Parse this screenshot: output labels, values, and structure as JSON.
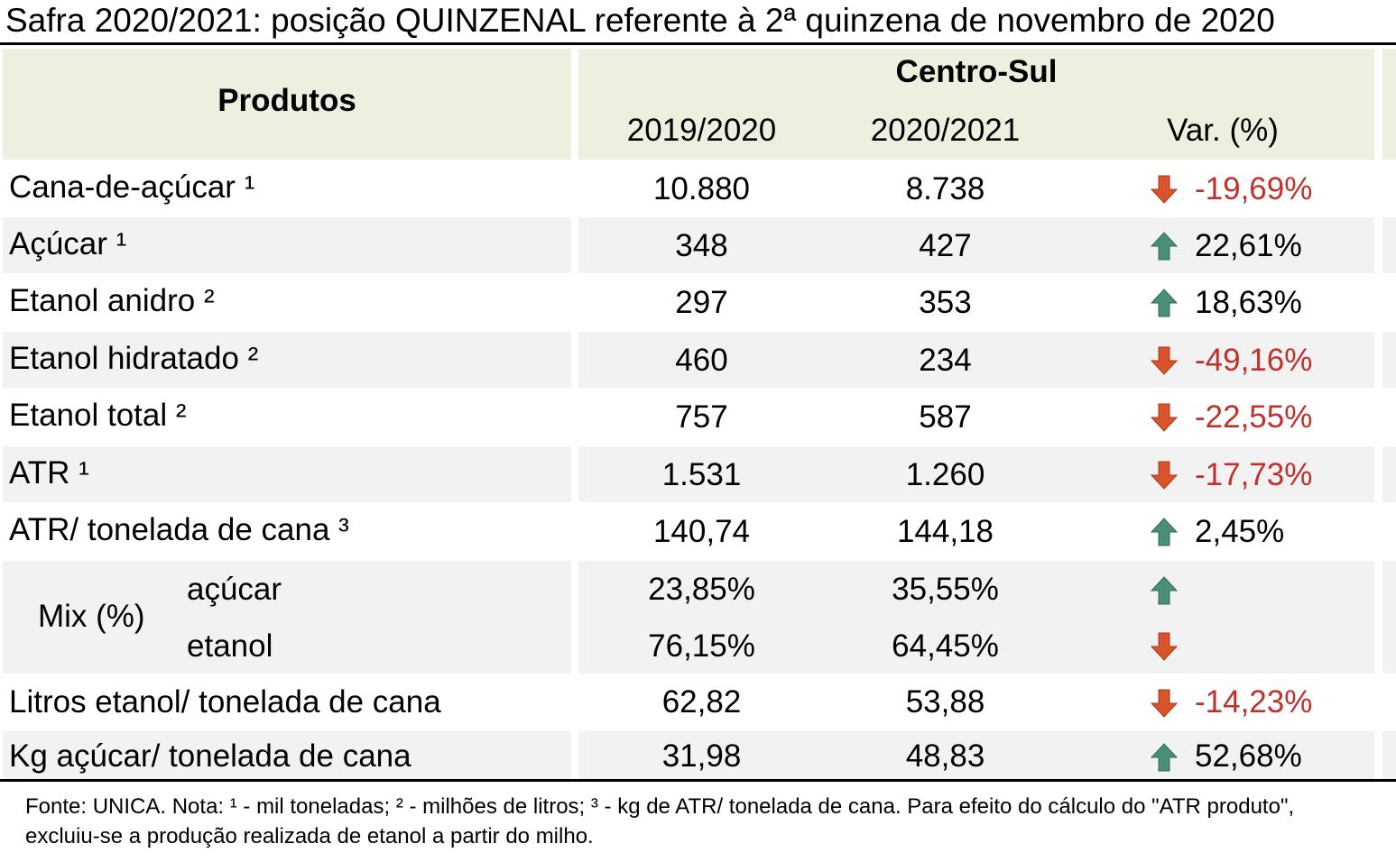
{
  "title": "Safra 2020/2021: posição QUINZENAL referente à 2ª quinzena de novembro de 2020",
  "header": {
    "produtos": "Produtos",
    "region": "Centro-Sul",
    "col_2019": "2019/2020",
    "col_2021": "2020/2021",
    "col_var": "Var. (%)"
  },
  "rows": [
    {
      "name": "Cana-de-açúcar ¹",
      "v2019": "10.880",
      "v2021": "8.738",
      "var": "-19,69%",
      "trend": "down"
    },
    {
      "name": "Açúcar ¹",
      "v2019": "348",
      "v2021": "427",
      "var": "22,61%",
      "trend": "up"
    },
    {
      "name": "Etanol anidro ²",
      "v2019": "297",
      "v2021": "353",
      "var": "18,63%",
      "trend": "up"
    },
    {
      "name": "Etanol hidratado ²",
      "v2019": "460",
      "v2021": "234",
      "var": "-49,16%",
      "trend": "down"
    },
    {
      "name": "Etanol total ²",
      "v2019": "757",
      "v2021": "587",
      "var": "-22,55%",
      "trend": "down"
    },
    {
      "name": "ATR ¹",
      "v2019": "1.531",
      "v2021": "1.260",
      "var": "-17,73%",
      "trend": "down"
    },
    {
      "name": "ATR/ tonelada de cana ³",
      "v2019": "140,74",
      "v2021": "144,18",
      "var": "2,45%",
      "trend": "up"
    }
  ],
  "mix": {
    "label": "Mix (%)",
    "acucar": {
      "label": "açúcar",
      "v2019": "23,85%",
      "v2021": "35,55%",
      "trend": "up"
    },
    "etanol": {
      "label": "etanol",
      "v2019": "76,15%",
      "v2021": "64,45%",
      "trend": "down"
    }
  },
  "rows_after": [
    {
      "name": "Litros etanol/ tonelada de cana",
      "v2019": "62,82",
      "v2021": "53,88",
      "var": "-14,23%",
      "trend": "down"
    },
    {
      "name": "Kg açúcar/ tonelada de cana",
      "v2019": "31,98",
      "v2021": "48,83",
      "var": "52,68%",
      "trend": "up"
    }
  ],
  "footnote": "Fonte: UNICA. Nota: ¹ - mil toneladas; ² - milhões de litros; ³ - kg de ATR/ tonelada de cana. Para efeito do cálculo do \"ATR produto\", excluiu-se a produção realizada de etanol a partir do milho.",
  "colors": {
    "header_bg": "#ebf1de",
    "row_bg": "#f2f2f2",
    "negative": "#c0312b",
    "arrow_up": "#4a8f76",
    "arrow_down": "#d9532b"
  }
}
